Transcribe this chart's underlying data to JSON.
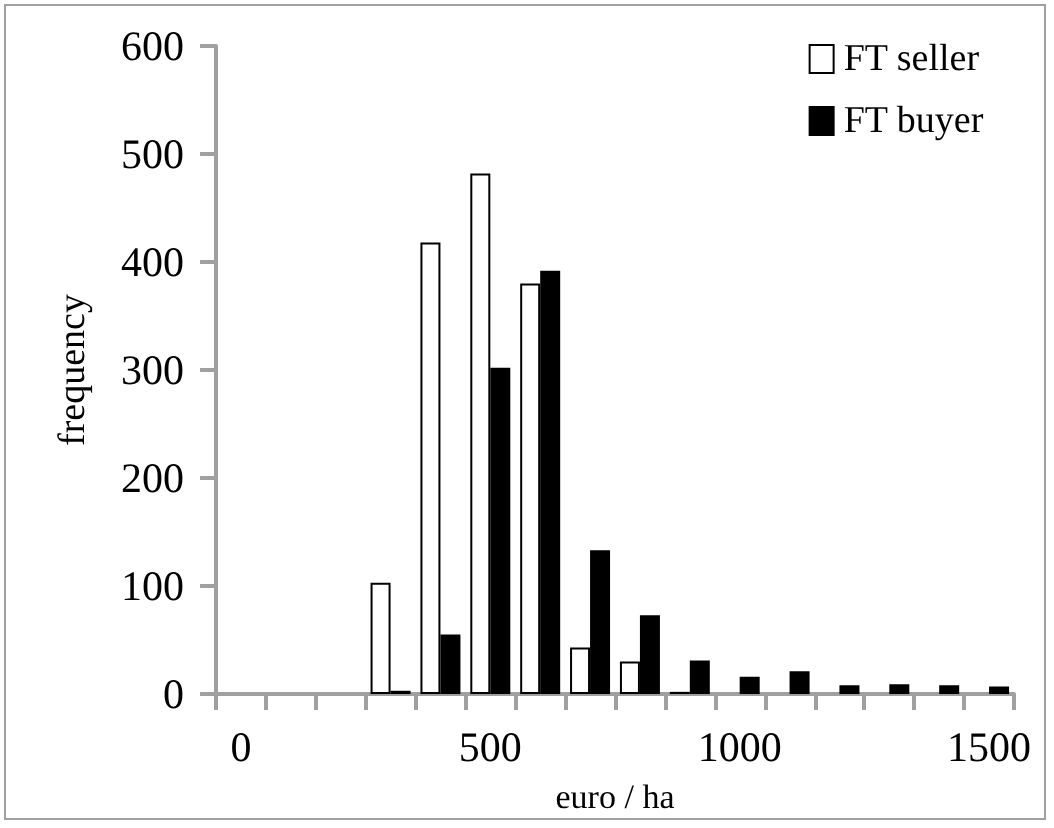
{
  "chart_data": {
    "type": "bar",
    "xlabel": "euro / ha",
    "ylabel": "frequency",
    "categories": [
      "0",
      null,
      null,
      null,
      null,
      "500",
      null,
      null,
      null,
      null,
      "1000",
      null,
      null,
      null,
      null,
      "1500"
    ],
    "series": [
      {
        "name": "FT seller",
        "color": "#ffffff",
        "values": [
          0,
          0,
          0,
          103,
          418,
          482,
          380,
          43,
          30,
          2,
          0,
          0,
          0,
          0,
          0,
          0
        ]
      },
      {
        "name": "FT buyer",
        "color": "#000000",
        "values": [
          0,
          0,
          0,
          3,
          55,
          302,
          392,
          133,
          73,
          31,
          16,
          21,
          8,
          9,
          8,
          7
        ]
      }
    ],
    "ylim": [
      0,
      600
    ],
    "yticks": [
      0,
      100,
      200,
      300,
      400,
      500,
      600
    ],
    "grid": false,
    "legend": "top right"
  }
}
